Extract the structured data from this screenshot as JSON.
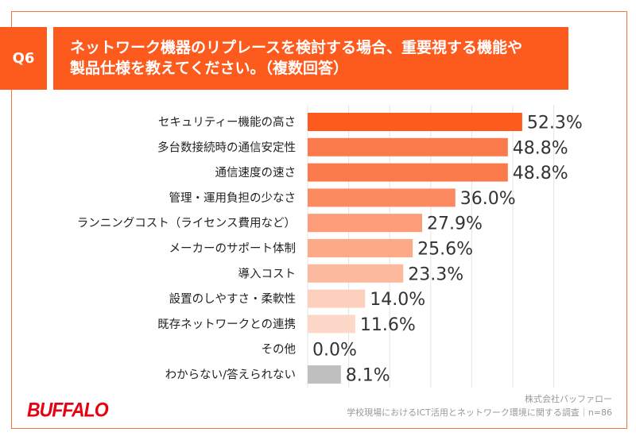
{
  "header": {
    "question_no": "Q6",
    "title_line1": "ネットワーク機器のリプレースを検討する場合、重要視する機能や",
    "title_line2": "製品仕様を教えてください。（複数回答）"
  },
  "footer": {
    "company": "株式会社バッファロー",
    "survey": "学校現場におけるICT活用とネットワーク環境に関する調査｜n=86",
    "logo": "BUFFALO"
  },
  "colors": {
    "accent": "#fd5a1e",
    "other": "#bfbfbf"
  },
  "chart_data": {
    "type": "bar",
    "orientation": "horizontal",
    "xlim": [
      0,
      60
    ],
    "grid": true,
    "categories": [
      "セキュリティー機能の高さ",
      "多台数接続時の通信安定性",
      "通信速度の速さ",
      "管理・運用負担の少なさ",
      "ランニングコスト（ライセンス費用など）",
      "メーカーのサポート体制",
      "導入コスト",
      "設置のしやすさ・柔軟性",
      "既存ネットワークとの連携",
      "その他",
      "わからない/答えられない"
    ],
    "values": [
      52.3,
      48.8,
      48.8,
      36.0,
      27.9,
      25.6,
      23.3,
      14.0,
      11.6,
      0.0,
      8.1
    ],
    "labels": [
      "52.3%",
      "48.8%",
      "48.8%",
      "36.0%",
      "27.9%",
      "25.6%",
      "23.3%",
      "14.0%",
      "11.6%",
      "0.0%",
      "8.1%"
    ],
    "bar_colors": [
      "#fd5a1e",
      "#fb7a4b",
      "#fb7a4b",
      "#fc8a60",
      "#fc9c78",
      "#fda886",
      "#fdb99e",
      "#fdd0bd",
      "#fdd8c8",
      "#fde3d8",
      "#bfbfbf"
    ]
  }
}
